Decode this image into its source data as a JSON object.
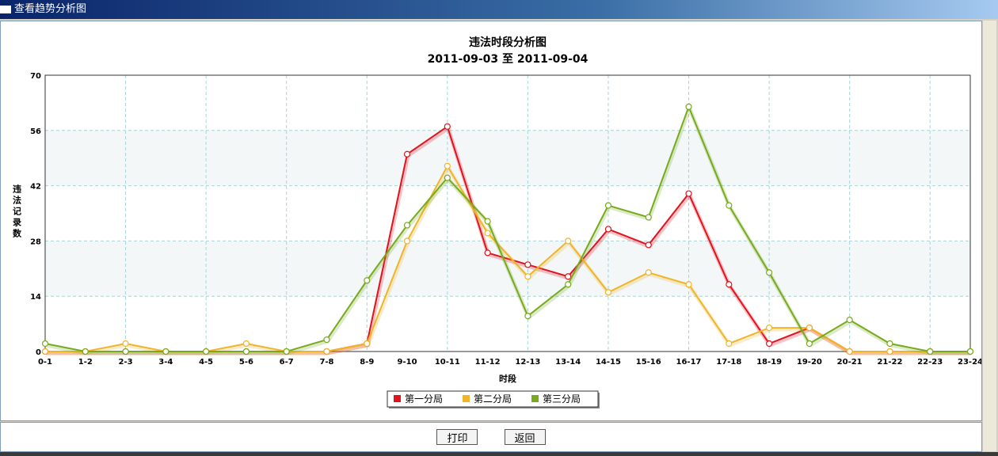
{
  "window": {
    "title": "查看趋势分析图"
  },
  "chart_data": {
    "type": "line",
    "title": "违法时段分析图",
    "subtitle": "2011-09-03 至 2011-09-04",
    "y_label": "违法记录数",
    "x_label": "时段",
    "categories": [
      "0-1",
      "1-2",
      "2-3",
      "3-4",
      "4-5",
      "5-6",
      "6-7",
      "7-8",
      "8-9",
      "9-10",
      "10-11",
      "11-12",
      "12-13",
      "13-14",
      "14-15",
      "15-16",
      "16-17",
      "17-18",
      "18-19",
      "19-20",
      "20-21",
      "21-22",
      "22-23",
      "23-24"
    ],
    "series": [
      {
        "name": "第一分局",
        "color": "#e0141e",
        "values": [
          0,
          0,
          0,
          0,
          0,
          0,
          0,
          0,
          2,
          50,
          57,
          25,
          22,
          19,
          31,
          27,
          40,
          17,
          2,
          6,
          0,
          0,
          0,
          0
        ]
      },
      {
        "name": "第二分局",
        "color": "#f0b428",
        "values": [
          0,
          0,
          2,
          0,
          0,
          2,
          0,
          0,
          2,
          28,
          47,
          30,
          19,
          28,
          15,
          20,
          17,
          2,
          6,
          6,
          0,
          0,
          0,
          0
        ]
      },
      {
        "name": "第三分局",
        "color": "#78aa1e",
        "values": [
          2,
          0,
          0,
          0,
          0,
          0,
          0,
          3,
          18,
          32,
          44,
          33,
          9,
          17,
          37,
          34,
          62,
          37,
          20,
          2,
          8,
          2,
          0,
          0
        ]
      }
    ],
    "ylim": [
      0,
      70
    ],
    "yticks": [
      0,
      14,
      28,
      42,
      56,
      70
    ],
    "grid": true,
    "legend": "bottom"
  },
  "buttons": [
    "打印",
    "返回"
  ]
}
